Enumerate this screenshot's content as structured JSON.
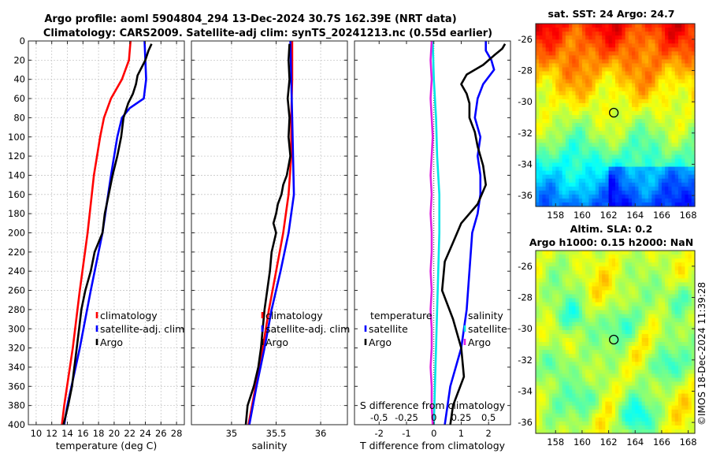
{
  "title": {
    "line1": "Argo profile: aoml 5904804_294 13-Dec-2024 30.7S 162.39E (NRT data)",
    "line2": "Climatology: CARS2009. Satellite-adj clim: synTS_20241213.nc (0.55d earlier)"
  },
  "watermark": "©IMOS 18-Dec-2024 11:39:28",
  "colors": {
    "climatology": "#ff0000",
    "satellite": "#0000ff",
    "argo": "#000000",
    "sal_sat": "#00e5e5",
    "sal_argo": "#e020e0"
  },
  "chart_data": [
    {
      "type": "line",
      "id": "temperature",
      "xlabel": "temperature (deg C)",
      "ylabel": "",
      "xlim": [
        9,
        29
      ],
      "ylim": [
        400,
        0
      ],
      "xticks": [
        "10",
        "12",
        "14",
        "16",
        "18",
        "20",
        "22",
        "24",
        "26",
        "28"
      ],
      "xtick_values": [
        10,
        12,
        14,
        16,
        18,
        20,
        22,
        24,
        26,
        28
      ],
      "yticks": [
        "0",
        "20",
        "40",
        "60",
        "80",
        "100",
        "120",
        "140",
        "160",
        "180",
        "200",
        "220",
        "240",
        "260",
        "280",
        "300",
        "320",
        "340",
        "360",
        "380",
        "400"
      ],
      "ytick_values": [
        0,
        20,
        40,
        60,
        80,
        100,
        120,
        140,
        160,
        180,
        200,
        220,
        240,
        260,
        280,
        300,
        320,
        340,
        360,
        380,
        400
      ],
      "grid": true,
      "legend": [
        "climatology",
        "satellite-adj. clim",
        "Argo"
      ],
      "series": [
        {
          "name": "climatology",
          "color": "#ff0000",
          "depth": [
            0,
            20,
            40,
            60,
            80,
            100,
            140,
            200,
            260,
            320,
            380,
            400
          ],
          "values": [
            22.1,
            21.9,
            21.0,
            19.6,
            18.7,
            18.2,
            17.4,
            16.6,
            15.6,
            14.7,
            13.6,
            13.3
          ]
        },
        {
          "name": "satellite-adj. clim",
          "color": "#0000ff",
          "depth": [
            0,
            20,
            40,
            60,
            70,
            80,
            100,
            140,
            200,
            260,
            320,
            380,
            400
          ],
          "values": [
            23.9,
            24.0,
            24.1,
            23.8,
            22.0,
            21.0,
            20.4,
            19.6,
            18.5,
            17.0,
            15.6,
            14.0,
            13.6
          ]
        },
        {
          "name": "Argo",
          "color": "#000000",
          "depth": [
            3,
            10,
            20,
            28,
            36,
            45,
            55,
            65,
            80,
            100,
            120,
            140,
            160,
            180,
            200,
            220,
            240,
            260,
            280,
            300,
            320,
            340,
            360,
            380,
            400
          ],
          "values": [
            24.8,
            24.4,
            24.0,
            23.5,
            23.0,
            22.8,
            22.4,
            21.8,
            21.2,
            20.9,
            20.4,
            19.8,
            19.3,
            18.8,
            18.5,
            17.5,
            17.0,
            16.3,
            15.8,
            15.5,
            15.2,
            14.9,
            14.6,
            14.1,
            13.5
          ]
        }
      ]
    },
    {
      "type": "line",
      "id": "salinity",
      "xlabel": "salinity",
      "xlim": [
        34.55,
        36.3
      ],
      "ylim": [
        400,
        0
      ],
      "xticks": [
        "35",
        "35.5",
        "36"
      ],
      "xtick_values": [
        35,
        35.5,
        36
      ],
      "grid": true,
      "legend": [
        "climatology",
        "satellite-adj. clim",
        "Argo"
      ],
      "series": [
        {
          "name": "climatology",
          "color": "#ff0000",
          "depth": [
            0,
            40,
            80,
            120,
            160,
            200,
            240,
            280,
            320,
            360,
            400
          ],
          "values": [
            35.68,
            35.68,
            35.67,
            35.67,
            35.64,
            35.58,
            35.5,
            35.42,
            35.35,
            35.27,
            35.19
          ]
        },
        {
          "name": "satellite-adj. clim",
          "color": "#0000ff",
          "depth": [
            0,
            40,
            80,
            120,
            160,
            200,
            240,
            280,
            320,
            360,
            400
          ],
          "values": [
            35.66,
            35.67,
            35.68,
            35.69,
            35.7,
            35.64,
            35.55,
            35.45,
            35.37,
            35.28,
            35.2
          ]
        },
        {
          "name": "Argo",
          "color": "#000000",
          "depth": [
            3,
            20,
            40,
            60,
            80,
            100,
            120,
            140,
            150,
            160,
            170,
            180,
            190,
            200,
            220,
            240,
            260,
            280,
            300,
            320,
            340,
            360,
            380,
            400
          ],
          "values": [
            35.65,
            35.64,
            35.65,
            35.63,
            35.65,
            35.64,
            35.66,
            35.62,
            35.58,
            35.56,
            35.52,
            35.5,
            35.47,
            35.5,
            35.45,
            35.43,
            35.4,
            35.37,
            35.35,
            35.33,
            35.3,
            35.25,
            35.18,
            35.16
          ]
        }
      ]
    },
    {
      "type": "line",
      "id": "difference",
      "xlabel": "T difference from climatology",
      "xlabel_top": "S difference from climatology",
      "xlim": [
        -2.9,
        2.8
      ],
      "ylim": [
        400,
        0
      ],
      "xticks": [
        "-2",
        "-1",
        "0",
        "1",
        "2"
      ],
      "xtick_values": [
        -2,
        -1,
        0,
        1,
        2
      ],
      "xticks_sal": [
        "-0.5",
        "-0.25",
        "0",
        "0.25",
        "0.5"
      ],
      "xtick_values_sal": [
        -0.5,
        -0.25,
        0,
        0.25,
        0.5
      ],
      "grid": false,
      "legend_temperature": {
        "title": "temperature",
        "items": [
          "satellite",
          "Argo"
        ]
      },
      "legend_salinity": {
        "title": "salinity",
        "items": [
          "satellite",
          "Argo"
        ]
      },
      "series": [
        {
          "name": "T satellite",
          "color": "#0000ff",
          "depth": [
            0,
            10,
            20,
            30,
            45,
            60,
            80,
            100,
            120,
            140,
            160,
            180,
            200,
            240,
            280,
            320,
            360,
            400
          ],
          "values": [
            1.9,
            1.9,
            2.1,
            2.2,
            1.8,
            1.6,
            1.5,
            1.7,
            1.6,
            1.7,
            1.7,
            1.6,
            1.4,
            1.3,
            1.2,
            1.0,
            0.6,
            0.4
          ]
        },
        {
          "name": "T Argo",
          "color": "#000000",
          "depth": [
            3,
            8,
            15,
            25,
            35,
            45,
            55,
            65,
            80,
            95,
            110,
            130,
            150,
            170,
            190,
            210,
            230,
            260,
            290,
            320,
            350,
            380,
            400
          ],
          "values": [
            2.6,
            2.5,
            2.2,
            1.8,
            1.2,
            1.0,
            1.2,
            1.3,
            1.3,
            1.5,
            1.6,
            1.8,
            1.9,
            1.6,
            1.0,
            0.7,
            0.4,
            0.3,
            0.7,
            1.0,
            1.1,
            0.7,
            0.6
          ]
        },
        {
          "name": "S satellite",
          "color": "#00e5e5",
          "depth": [
            0,
            40,
            80,
            120,
            160,
            200,
            240,
            280,
            320,
            360,
            400
          ],
          "values": [
            -0.01,
            0.0,
            0.02,
            0.03,
            0.05,
            0.05,
            0.04,
            0.03,
            0.02,
            0.01,
            0.0
          ]
        },
        {
          "name": "S Argo",
          "color": "#e020e0",
          "depth": [
            0,
            20,
            40,
            60,
            80,
            100,
            120,
            140,
            160,
            180,
            200,
            220,
            240,
            260,
            280,
            300,
            320,
            340,
            360,
            380,
            400
          ],
          "values": [
            -0.02,
            -0.03,
            -0.02,
            -0.03,
            -0.02,
            -0.01,
            -0.02,
            -0.03,
            -0.02,
            -0.03,
            -0.02,
            -0.02,
            -0.03,
            -0.02,
            -0.03,
            -0.02,
            -0.02,
            -0.03,
            -0.02,
            -0.02,
            -0.01
          ]
        }
      ]
    },
    {
      "type": "heatmap",
      "id": "sst",
      "title": "sat. SST: 24 Argo: 24.7",
      "xlim": [
        156.5,
        168.5
      ],
      "ylim": [
        -36.7,
        -25
      ],
      "xticks": [
        "158",
        "160",
        "162",
        "164",
        "166",
        "168"
      ],
      "xtick_values": [
        158,
        160,
        162,
        164,
        166,
        168
      ],
      "yticks": [
        "-26",
        "-28",
        "-30",
        "-32",
        "-34",
        "-36"
      ],
      "ytick_values": [
        -26,
        -28,
        -30,
        -32,
        -34,
        -36
      ],
      "marker": {
        "lon": 162.39,
        "lat": -30.7
      }
    },
    {
      "type": "heatmap",
      "id": "sla",
      "title_line1": "Altim. SLA: 0.2",
      "title_line2": "Argo h1000: 0.15 h2000: NaN",
      "xlim": [
        156.5,
        168.5
      ],
      "ylim": [
        -36.7,
        -25
      ],
      "xticks": [
        "158",
        "160",
        "162",
        "164",
        "166",
        "168"
      ],
      "xtick_values": [
        158,
        160,
        162,
        164,
        166,
        168
      ],
      "yticks": [
        "-26",
        "-28",
        "-30",
        "-32",
        "-34",
        "-36"
      ],
      "ytick_values": [
        -26,
        -28,
        -30,
        -32,
        -34,
        -36
      ],
      "marker": {
        "lon": 162.39,
        "lat": -30.7
      }
    }
  ]
}
